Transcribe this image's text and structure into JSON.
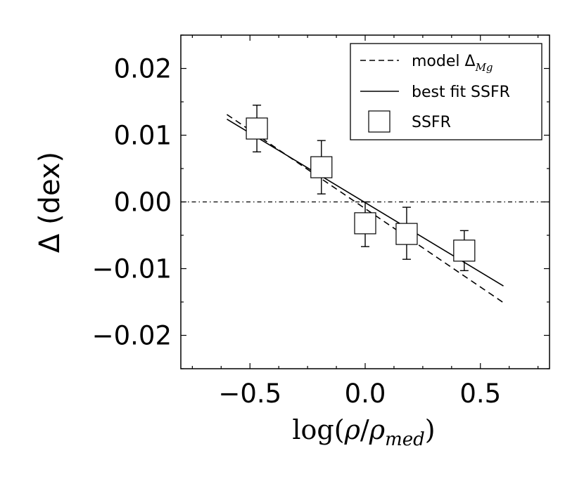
{
  "chart_data": {
    "type": "scatter",
    "title": "",
    "xlabel": {
      "prefix": "log(",
      "rho": "ρ",
      "slash": "/",
      "rho2": "ρ",
      "sub": "med",
      "suffix": ")"
    },
    "ylabel": "Δ (dex)",
    "xlim": [
      -0.8,
      0.8
    ],
    "ylim": [
      -0.025,
      0.025
    ],
    "xticks": [
      -0.5,
      0.0,
      0.5
    ],
    "xtick_labels": [
      "−0.5",
      "0.0",
      "0.5"
    ],
    "yticks": [
      0.02,
      0.01,
      0.0,
      -0.01,
      -0.02
    ],
    "ytick_labels": [
      "0.02",
      "0.01",
      "0.00",
      "−0.01",
      "−0.02"
    ],
    "series": [
      {
        "name": "model ΔMg",
        "kind": "line",
        "style": "dashed",
        "x": [
          -0.6,
          0.6
        ],
        "y": [
          0.0131,
          -0.0151
        ]
      },
      {
        "name": "best fit SSFR",
        "kind": "line",
        "style": "solid",
        "x": [
          -0.6,
          0.6
        ],
        "y": [
          0.0124,
          -0.0126
        ]
      },
      {
        "name": "SSFR",
        "kind": "scatter",
        "marker": "square",
        "x": [
          -0.47,
          -0.19,
          0.0,
          0.18,
          0.43
        ],
        "y": [
          0.011,
          0.0052,
          -0.0032,
          -0.0048,
          -0.0073
        ],
        "yerr_low": [
          0.0035,
          0.004,
          0.0035,
          0.0038,
          0.003
        ],
        "yerr_high": [
          0.0035,
          0.004,
          0.0032,
          0.004,
          0.003
        ]
      },
      {
        "name": "zero line",
        "kind": "hline",
        "style": "dashdot",
        "y": 0.0
      }
    ],
    "legend": {
      "position": "top-right",
      "entries": [
        {
          "label": "model ",
          "math": "Δ",
          "sub": "Mg",
          "style": "dashed"
        },
        {
          "label": "best fit SSFR",
          "style": "solid"
        },
        {
          "label": "SSFR",
          "style": "square"
        }
      ]
    }
  }
}
